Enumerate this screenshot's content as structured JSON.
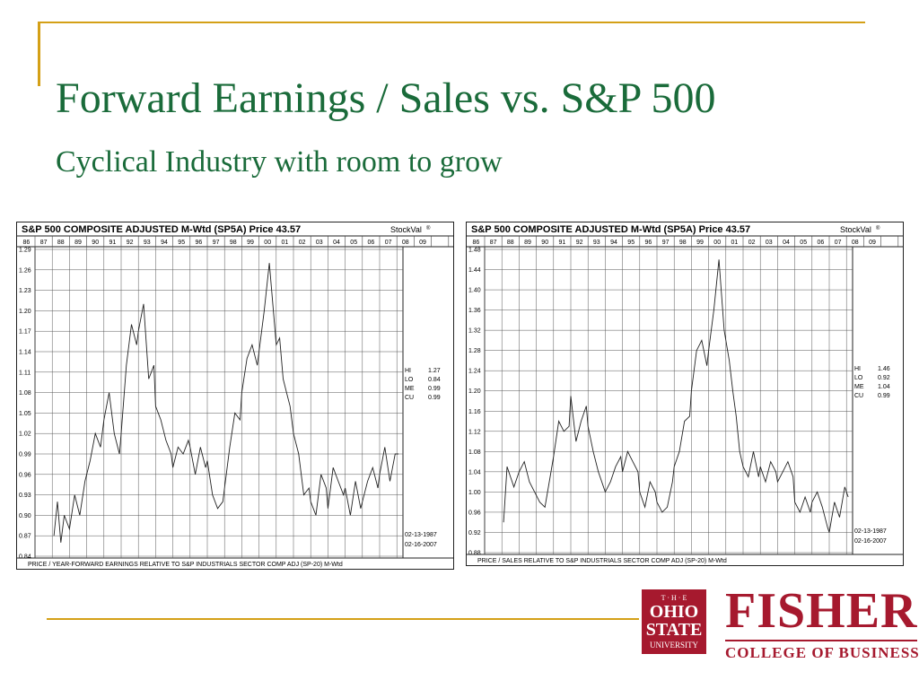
{
  "slide": {
    "title": "Forward Earnings / Sales vs. S&P 500",
    "subtitle": "Cyclical Industry with room to grow"
  },
  "logos": {
    "osu": {
      "line1": "T · H · E",
      "line2": "OHIO",
      "line3": "STATE",
      "line4": "UNIVERSITY"
    },
    "fisher": {
      "name": "FISHER",
      "sub": "COLLEGE OF BUSINESS"
    }
  },
  "colors": {
    "title_green": "#1a6b3a",
    "accent_gold": "#d4a017",
    "brand_red": "#a6192e"
  },
  "chart_data": [
    {
      "type": "line",
      "header": "S&P 500 COMPOSITE ADJUSTED M-Wtd (SP5A)  Price 43.57",
      "source": "StockVal",
      "source_mark": "®",
      "years": [
        "86",
        "87",
        "88",
        "89",
        "90",
        "91",
        "92",
        "93",
        "94",
        "95",
        "96",
        "97",
        "98",
        "99",
        "00",
        "01",
        "02",
        "03",
        "04",
        "05",
        "06",
        "07",
        "08",
        "09"
      ],
      "yticks": [
        "1.29",
        "1.26",
        "1.23",
        "1.20",
        "1.17",
        "1.14",
        "1.11",
        "1.08",
        "1.05",
        "1.02",
        "0.99",
        "0.96",
        "0.93",
        "0.90",
        "0.87",
        "0.84"
      ],
      "ylim": [
        0.84,
        1.29
      ],
      "stats": [
        [
          "HI",
          "1.27"
        ],
        [
          "LO",
          "0.84"
        ],
        [
          "ME",
          "0.99"
        ],
        [
          "CU",
          "0.99"
        ]
      ],
      "dates": [
        "02-13-1987",
        "02-16-2007"
      ],
      "footer": "PRICE / YEAR-FORWARD EARNINGS RELATIVE TO S&P INDUSTRIALS SECTOR COMP ADJ (SP-20) M-Wtd",
      "series": [
        {
          "x": [
            1987.1,
            1987.3,
            1987.5,
            1987.7,
            1988.0,
            1988.3,
            1988.6,
            1988.9,
            1989.2,
            1989.5,
            1989.8,
            1990.0,
            1990.3,
            1990.6,
            1990.9,
            1991.0,
            1991.3,
            1991.6,
            1991.9,
            1992.0,
            1992.3,
            1992.6,
            1992.9,
            1993.0,
            1993.3,
            1993.6,
            1993.9,
            1994.0,
            1994.3,
            1994.6,
            1994.9,
            1995.0,
            1995.3,
            1995.6,
            1995.9,
            1996.0,
            1996.3,
            1996.6,
            1996.9,
            1997.0,
            1997.3,
            1997.6,
            1997.9,
            1998.0,
            1998.3,
            1998.6,
            1998.9,
            1999.0,
            1999.3,
            1999.6,
            1999.9,
            2000.0,
            2000.2,
            2000.4,
            2000.6,
            2000.8,
            2001.0,
            2001.3,
            2001.6,
            2001.9,
            2002.0,
            2002.3,
            2002.6,
            2002.9,
            2003.0,
            2003.3,
            2003.6,
            2003.9,
            2004.0,
            2004.3,
            2004.6,
            2004.9,
            2005.0,
            2005.3,
            2005.6,
            2005.9,
            2006.0,
            2006.3,
            2006.6,
            2006.9,
            2007.1
          ],
          "y": [
            0.87,
            0.92,
            0.86,
            0.9,
            0.88,
            0.93,
            0.9,
            0.95,
            0.98,
            1.02,
            1.0,
            1.04,
            1.08,
            1.02,
            0.99,
            1.02,
            1.12,
            1.18,
            1.15,
            1.17,
            1.21,
            1.1,
            1.12,
            1.06,
            1.04,
            1.01,
            0.99,
            0.97,
            1.0,
            0.99,
            1.01,
            1.0,
            0.96,
            1.0,
            0.97,
            0.98,
            0.93,
            0.91,
            0.92,
            0.94,
            1.0,
            1.05,
            1.04,
            1.08,
            1.13,
            1.15,
            1.12,
            1.14,
            1.2,
            1.27,
            1.18,
            1.15,
            1.16,
            1.1,
            1.08,
            1.06,
            1.02,
            0.99,
            0.93,
            0.94,
            0.92,
            0.9,
            0.96,
            0.94,
            0.91,
            0.97,
            0.95,
            0.93,
            0.94,
            0.9,
            0.95,
            0.91,
            0.92,
            0.95,
            0.97,
            0.94,
            0.96,
            1.0,
            0.95,
            0.99,
            0.99
          ]
        }
      ]
    },
    {
      "type": "line",
      "header": "S&P 500 COMPOSITE ADJUSTED M-Wtd (SP5A)  Price 43.57",
      "source": "StockVal",
      "source_mark": "®",
      "years": [
        "86",
        "87",
        "88",
        "89",
        "90",
        "91",
        "92",
        "93",
        "94",
        "95",
        "96",
        "97",
        "98",
        "99",
        "00",
        "01",
        "02",
        "03",
        "04",
        "05",
        "06",
        "07",
        "08",
        "09"
      ],
      "yticks": [
        "1.48",
        "1.44",
        "1.40",
        "1.36",
        "1.32",
        "1.28",
        "1.24",
        "1.20",
        "1.16",
        "1.12",
        "1.08",
        "1.04",
        "1.00",
        "0.96",
        "0.92",
        "0.88"
      ],
      "ylim": [
        0.88,
        1.48
      ],
      "stats": [
        [
          "HI",
          "1.46"
        ],
        [
          "LO",
          "0.92"
        ],
        [
          "ME",
          "1.04"
        ],
        [
          "CU",
          "0.99"
        ]
      ],
      "dates": [
        "02-13-1987",
        "02-16-2007"
      ],
      "footer": "PRICE / SALES RELATIVE TO S&P INDUSTRIALS SECTOR COMP ADJ (SP-20) M-Wtd",
      "series": [
        {
          "x": [
            1987.1,
            1987.3,
            1987.5,
            1987.7,
            1988.0,
            1988.3,
            1988.6,
            1988.9,
            1989.2,
            1989.5,
            1989.8,
            1990.0,
            1990.3,
            1990.6,
            1990.9,
            1991.0,
            1991.3,
            1991.6,
            1991.9,
            1992.0,
            1992.3,
            1992.6,
            1992.9,
            1993.0,
            1993.3,
            1993.6,
            1993.9,
            1994.0,
            1994.3,
            1994.6,
            1994.9,
            1995.0,
            1995.3,
            1995.6,
            1995.9,
            1996.0,
            1996.3,
            1996.6,
            1996.9,
            1997.0,
            1997.3,
            1997.6,
            1997.9,
            1998.0,
            1998.3,
            1998.6,
            1998.9,
            1999.0,
            1999.3,
            1999.6,
            1999.9,
            2000.0,
            2000.2,
            2000.4,
            2000.6,
            2000.8,
            2001.0,
            2001.3,
            2001.6,
            2001.9,
            2002.0,
            2002.3,
            2002.6,
            2002.9,
            2003.0,
            2003.3,
            2003.6,
            2003.9,
            2004.0,
            2004.3,
            2004.6,
            2004.9,
            2005.0,
            2005.3,
            2005.6,
            2005.9,
            2006.0,
            2006.3,
            2006.6,
            2006.9,
            2007.1
          ],
          "y": [
            0.94,
            1.05,
            1.03,
            1.01,
            1.04,
            1.06,
            1.02,
            1.0,
            0.98,
            0.97,
            1.03,
            1.07,
            1.14,
            1.12,
            1.13,
            1.19,
            1.1,
            1.14,
            1.17,
            1.13,
            1.08,
            1.04,
            1.01,
            1.0,
            1.02,
            1.05,
            1.07,
            1.04,
            1.08,
            1.06,
            1.04,
            1.0,
            0.97,
            1.02,
            1.0,
            0.98,
            0.96,
            0.97,
            1.02,
            1.05,
            1.08,
            1.14,
            1.15,
            1.2,
            1.28,
            1.3,
            1.25,
            1.28,
            1.36,
            1.46,
            1.32,
            1.3,
            1.26,
            1.2,
            1.15,
            1.08,
            1.05,
            1.03,
            1.08,
            1.03,
            1.05,
            1.02,
            1.06,
            1.04,
            1.02,
            1.04,
            1.06,
            1.03,
            0.98,
            0.96,
            0.99,
            0.96,
            0.98,
            1.0,
            0.97,
            0.93,
            0.92,
            0.98,
            0.95,
            1.01,
            0.99
          ]
        }
      ]
    }
  ]
}
